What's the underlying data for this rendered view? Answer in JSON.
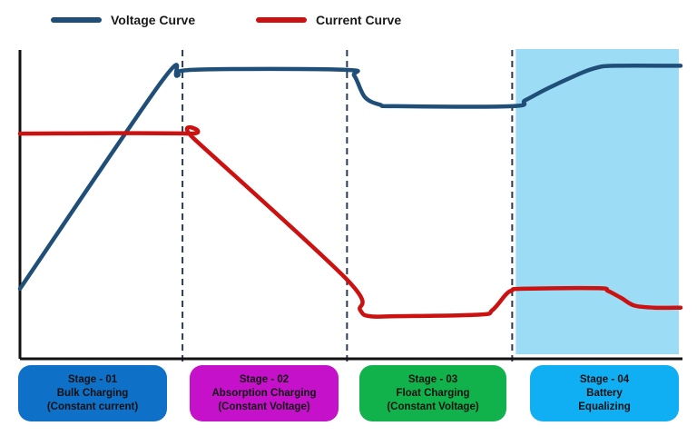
{
  "legend": [
    {
      "name": "Voltage Curve",
      "color": "#1f4e79"
    },
    {
      "name": "Current Curve",
      "color": "#cc1111"
    }
  ],
  "colors": {
    "voltage": "#1f4e79",
    "current": "#cc1111",
    "highlight": "#9ddcf5",
    "divider": "#2b3a55",
    "axis": "#111111"
  },
  "chart_data": {
    "type": "line",
    "x_range": [
      0,
      100
    ],
    "y_range": [
      0,
      100
    ],
    "stage_boundaries": [
      24.6,
      49.5,
      74.5
    ],
    "highlighted_stage": 4,
    "series": [
      {
        "name": "Voltage Curve",
        "points": [
          [
            0,
            23
          ],
          [
            21.4,
            91
          ],
          [
            23.8,
            93
          ],
          [
            26.5,
            95
          ],
          [
            49.0,
            95
          ],
          [
            50.6,
            93
          ],
          [
            52.2,
            86
          ],
          [
            54.5,
            83.5
          ],
          [
            57.0,
            83
          ],
          [
            74.5,
            83
          ],
          [
            76.5,
            85
          ],
          [
            80,
            89
          ],
          [
            84,
            93
          ],
          [
            87,
            95.5
          ],
          [
            90,
            96.3
          ],
          [
            100,
            96.3
          ]
        ]
      },
      {
        "name": "Current Curve",
        "points": [
          [
            0,
            74
          ],
          [
            25.5,
            74
          ],
          [
            26.5,
            72
          ],
          [
            49.5,
            26
          ],
          [
            51.5,
            16
          ],
          [
            53,
            14
          ],
          [
            57,
            14
          ],
          [
            69.5,
            14.5
          ],
          [
            71.5,
            16
          ],
          [
            73.5,
            21
          ],
          [
            74.5,
            22.5
          ],
          [
            76,
            23
          ],
          [
            87.5,
            23.2
          ],
          [
            89,
            22.3
          ],
          [
            91,
            20
          ],
          [
            93,
            17.5
          ],
          [
            96,
            16.8
          ],
          [
            100,
            16.8
          ]
        ]
      }
    ]
  },
  "stages": [
    {
      "label": "Stage - 01",
      "line1": "Bulk Charging",
      "line2": "(Constant current)",
      "color": "#0e70c6"
    },
    {
      "label": "Stage - 02",
      "line1": "Absorption Charging",
      "line2": "(Constant Voltage)",
      "color": "#c511c9"
    },
    {
      "label": "Stage - 03",
      "line1": "Float Charging",
      "line2": "(Constant Voltage)",
      "color": "#11b14b"
    },
    {
      "label": "Stage - 04",
      "line1": "Battery",
      "line2": "Equalizing",
      "color": "#10aef2"
    }
  ]
}
